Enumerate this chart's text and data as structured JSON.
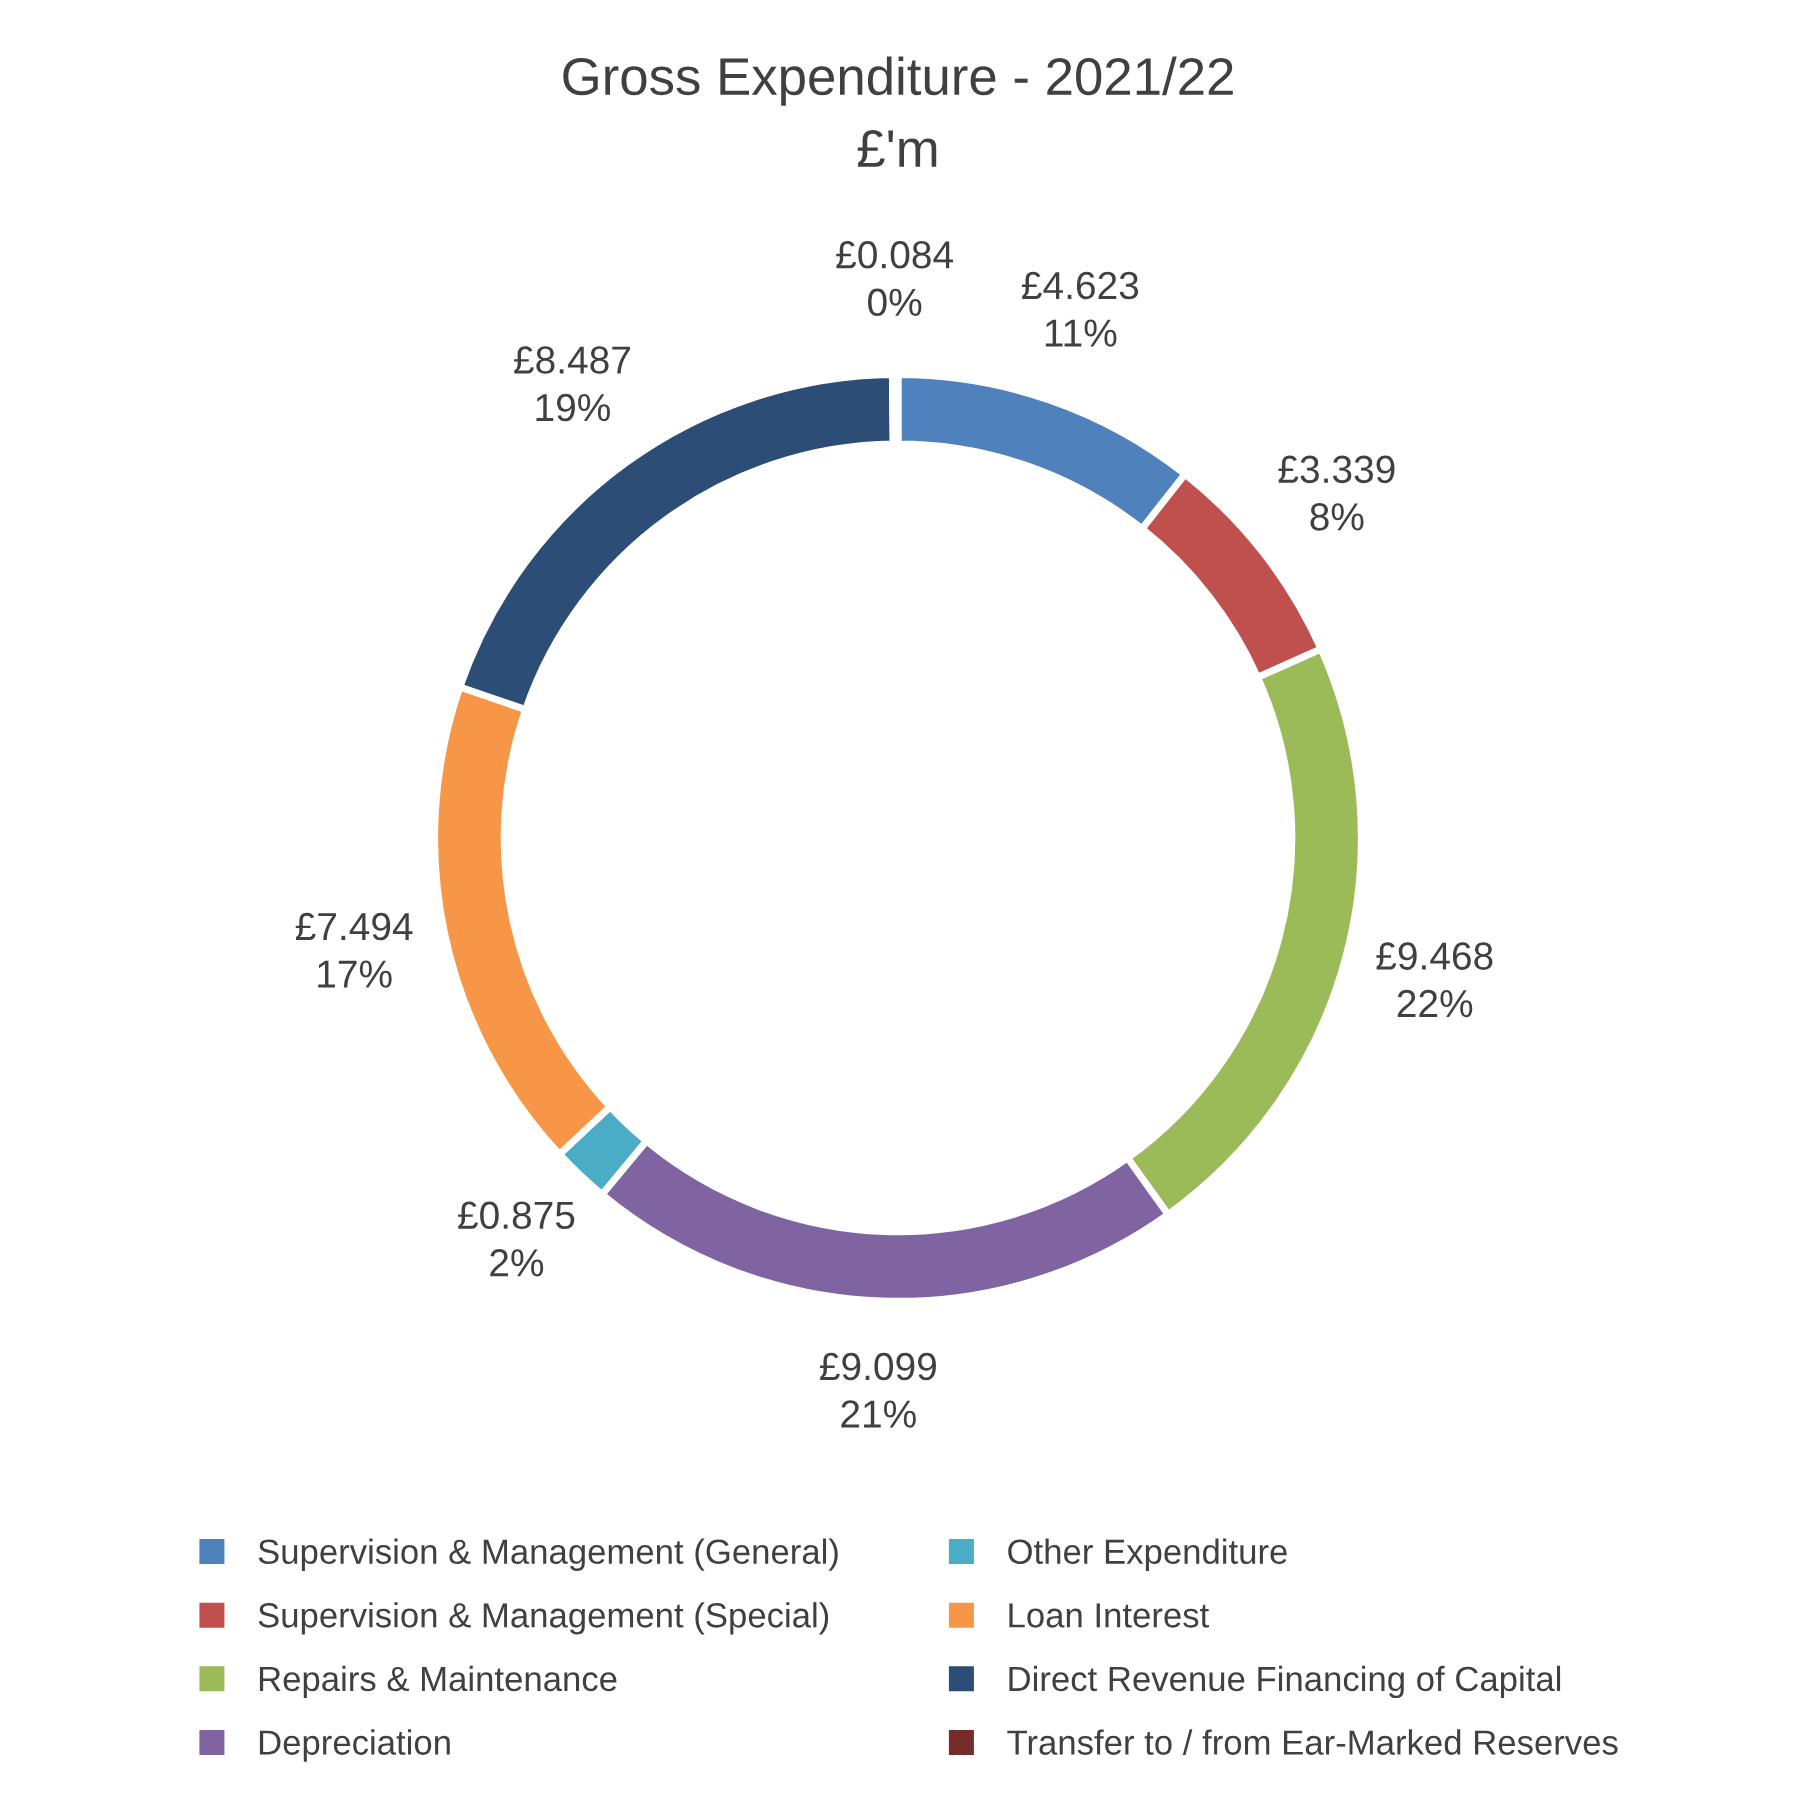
{
  "chart_data": {
    "type": "donut",
    "title": "Gross Expenditure - 2021/22",
    "subtitle": "£'m",
    "categories": [
      "Supervision & Management (General)",
      "Supervision & Management (Special)",
      "Repairs & Maintenance",
      "Depreciation",
      "Other Expenditure",
      "Loan Interest",
      "Direct Revenue Financing of Capital",
      "Transfer to / from Ear-Marked Reserves"
    ],
    "values": [
      4.623,
      3.339,
      9.468,
      9.099,
      0.875,
      7.494,
      8.487,
      0.084
    ],
    "value_labels": [
      "£4.623\n11%",
      "£3.339\n8%",
      "£9.468\n22%",
      "£9.099\n21%",
      "£0.875\n2%",
      "£7.494\n17%",
      "£8.487\n19%",
      "£0.084\n0%"
    ],
    "colors": [
      "#4f81bd",
      "#c0504d",
      "#9bbb59",
      "#8064a2",
      "#4bacc6",
      "#f79646",
      "#2c4d75",
      "#772c2a"
    ],
    "legend": "bottom"
  }
}
